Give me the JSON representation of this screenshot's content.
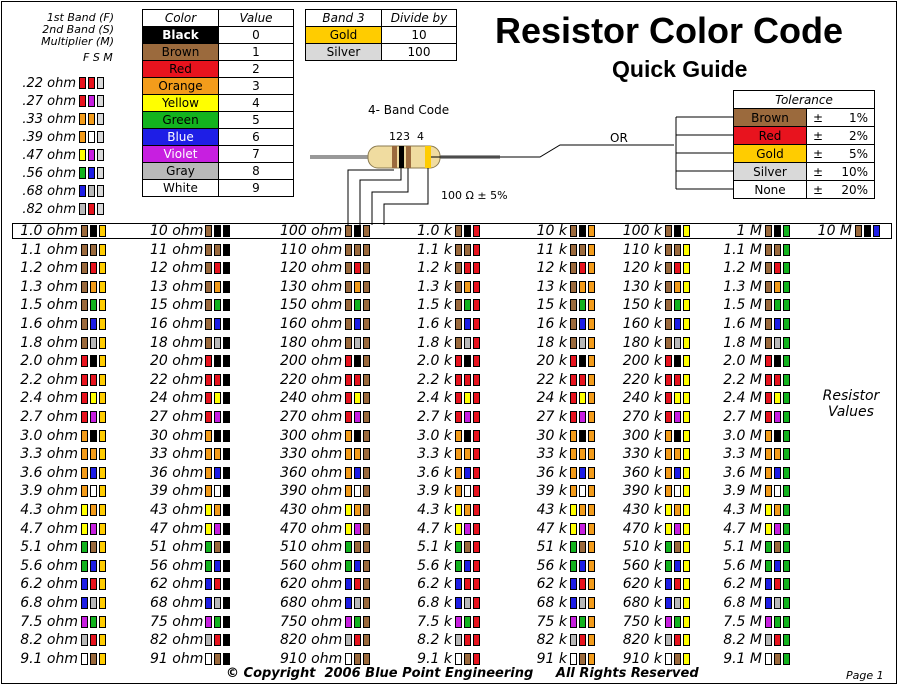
{
  "header": {
    "title": "Resistor Color Code",
    "subtitle": "Quick Guide",
    "band_code_label": "4- Band Code",
    "band_numbers": "123  4",
    "example_value": "100 Ω ± 5%",
    "or_label": "OR",
    "legend_lines": [
      "1st Band (F)",
      "2nd Band (S)",
      "Multiplier (M)"
    ],
    "legend_fsm": "F S M",
    "side_label_1": "Resistor",
    "side_label_2": "Values"
  },
  "colors": {
    "black": "#000000",
    "brown": "#9b6a3d",
    "red": "#e8131e",
    "orange": "#f39c1b",
    "yellow": "#ffff00",
    "green": "#13b31e",
    "blue": "#1e1ee6",
    "violet": "#c71fe0",
    "gray": "#b9b9b9",
    "white": "#ffffff",
    "gold": "#ffcc00",
    "silver": "#d9d9d9"
  },
  "color_table": {
    "headers": [
      "Color",
      "Value"
    ],
    "rows": [
      {
        "name": "Black",
        "value": "0",
        "bg": "#000000",
        "fg": "#ffffff"
      },
      {
        "name": "Brown",
        "value": "1",
        "bg": "#9b6a3d",
        "fg": "#000000"
      },
      {
        "name": "Red",
        "value": "2",
        "bg": "#e8131e",
        "fg": "#000000"
      },
      {
        "name": "Orange",
        "value": "3",
        "bg": "#f39c1b",
        "fg": "#000000"
      },
      {
        "name": "Yellow",
        "value": "4",
        "bg": "#ffff00",
        "fg": "#000000"
      },
      {
        "name": "Green",
        "value": "5",
        "bg": "#13b31e",
        "fg": "#000000"
      },
      {
        "name": "Blue",
        "value": "6",
        "bg": "#1e1ee6",
        "fg": "#ffffff"
      },
      {
        "name": "Violet",
        "value": "7",
        "bg": "#c71fe0",
        "fg": "#ffffff"
      },
      {
        "name": "Gray",
        "value": "8",
        "bg": "#b9b9b9",
        "fg": "#000000"
      },
      {
        "name": "White",
        "value": "9",
        "bg": "#ffffff",
        "fg": "#000000"
      }
    ]
  },
  "divide_table": {
    "headers": [
      "Band 3",
      "Divide by"
    ],
    "rows": [
      {
        "name": "Gold",
        "value": "10",
        "bg": "#ffcc00"
      },
      {
        "name": "Silver",
        "value": "100",
        "bg": "#d9d9d9"
      }
    ]
  },
  "tolerance_table": {
    "header": "Tolerance",
    "rows": [
      {
        "name": "Brown",
        "sym": "±",
        "value": "1%",
        "bg": "#9b6a3d"
      },
      {
        "name": "Red",
        "sym": "±",
        "value": "2%",
        "bg": "#e8131e"
      },
      {
        "name": "Gold",
        "sym": "±",
        "value": "5%",
        "bg": "#ffcc00"
      },
      {
        "name": "Silver",
        "sym": "±",
        "value": "10%",
        "bg": "#d9d9d9"
      },
      {
        "name": "None",
        "sym": "±",
        "value": "20%",
        "bg": "#ffffff"
      }
    ]
  },
  "sub_ohm": [
    {
      "label": ".22 ohm",
      "bands": [
        "red",
        "red",
        "silver"
      ]
    },
    {
      "label": ".27 ohm",
      "bands": [
        "red",
        "violet",
        "silver"
      ]
    },
    {
      "label": ".33 ohm",
      "bands": [
        "orange",
        "orange",
        "silver"
      ]
    },
    {
      "label": ".39 ohm",
      "bands": [
        "orange",
        "white",
        "silver"
      ]
    },
    {
      "label": ".47 ohm",
      "bands": [
        "yellow",
        "violet",
        "silver"
      ]
    },
    {
      "label": ".56 ohm",
      "bands": [
        "green",
        "blue",
        "silver"
      ]
    },
    {
      "label": ".68 ohm",
      "bands": [
        "blue",
        "gray",
        "silver"
      ]
    },
    {
      "label": ".82 ohm",
      "bands": [
        "gray",
        "red",
        "silver"
      ]
    }
  ],
  "columns": [
    {
      "unit": "ohm",
      "mult": "gold",
      "prefix": "",
      "labels": [
        "1.0",
        "1.1",
        "1.2",
        "1.3",
        "1.5",
        "1.6",
        "1.8",
        "2.0",
        "2.2",
        "2.4",
        "2.7",
        "3.0",
        "3.3",
        "3.6",
        "3.9",
        "4.3",
        "4.7",
        "5.1",
        "5.6",
        "6.2",
        "6.8",
        "7.5",
        "8.2",
        "9.1"
      ]
    },
    {
      "unit": "ohm",
      "mult": "black",
      "prefix": "",
      "labels": [
        "10",
        "11",
        "12",
        "13",
        "15",
        "16",
        "18",
        "20",
        "22",
        "24",
        "27",
        "30",
        "33",
        "36",
        "39",
        "43",
        "47",
        "51",
        "56",
        "62",
        "68",
        "75",
        "82",
        "91"
      ]
    },
    {
      "unit": "ohm",
      "mult": "brown",
      "prefix": "",
      "labels": [
        "100",
        "110",
        "120",
        "130",
        "150",
        "160",
        "180",
        "200",
        "220",
        "240",
        "270",
        "300",
        "330",
        "360",
        "390",
        "430",
        "470",
        "510",
        "560",
        "620",
        "680",
        "750",
        "820",
        "910"
      ]
    },
    {
      "unit": "k",
      "mult": "red",
      "prefix": "",
      "labels": [
        "1.0",
        "1.1",
        "1.2",
        "1.3",
        "1.5",
        "1.6",
        "1.8",
        "2.0",
        "2.2",
        "2.4",
        "2.7",
        "3.0",
        "3.3",
        "3.6",
        "3.9",
        "4.3",
        "4.7",
        "5.1",
        "5.6",
        "6.2",
        "6.8",
        "7.5",
        "8.2",
        "9.1"
      ]
    },
    {
      "unit": "k",
      "mult": "orange",
      "prefix": "",
      "labels": [
        "10",
        "11",
        "12",
        "13",
        "15",
        "16",
        "18",
        "20",
        "22",
        "24",
        "27",
        "30",
        "33",
        "36",
        "39",
        "43",
        "47",
        "51",
        "56",
        "62",
        "68",
        "75",
        "82",
        "91"
      ]
    },
    {
      "unit": "k",
      "mult": "yellow",
      "prefix": "",
      "labels": [
        "100",
        "110",
        "120",
        "130",
        "150",
        "160",
        "180",
        "200",
        "220",
        "240",
        "270",
        "300",
        "330",
        "360",
        "390",
        "430",
        "470",
        "510",
        "560",
        "620",
        "680",
        "750",
        "820",
        "910"
      ]
    },
    {
      "unit": "M",
      "mult": "green",
      "prefix": "",
      "labels": [
        "1",
        "1.1",
        "1.2",
        "1.3",
        "1.5",
        "1.6",
        "1.8",
        "2.0",
        "2.2",
        "2.4",
        "2.7",
        "3.0",
        "3.3",
        "3.6",
        "3.9",
        "4.3",
        "4.7",
        "5.1",
        "5.6",
        "6.2",
        "6.8",
        "7.5",
        "8.2",
        "9.1"
      ]
    }
  ],
  "ten_meg": {
    "label": "10 M",
    "bands": [
      "brown",
      "black",
      "blue"
    ]
  },
  "footer": {
    "copyright": "© Copyright  2006 Blue Point Engineering     All Rights Reserved",
    "page": "Page 1"
  }
}
